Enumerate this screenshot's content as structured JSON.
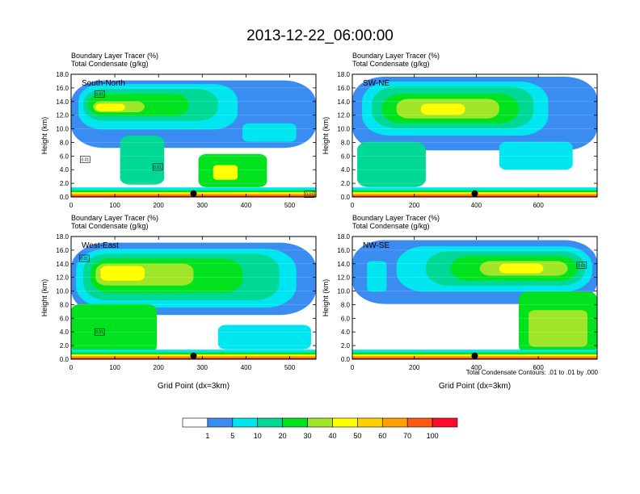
{
  "figure": {
    "title": "2013-12-22_06:00:00",
    "footnote": "Total Condensate Contours: .01 to .01 by .000"
  },
  "colorbar": {
    "colors": [
      "#ffffff",
      "#3a8cf0",
      "#00e6f0",
      "#00d896",
      "#00e21e",
      "#a0e628",
      "#ffff00",
      "#ffd000",
      "#ffa000",
      "#ff5a14",
      "#ff0a28"
    ],
    "labels": [
      "1",
      "5",
      "10",
      "20",
      "30",
      "40",
      "50",
      "60",
      "70",
      "100"
    ]
  },
  "chart_data": [
    {
      "type": "heatmap",
      "label": "South-North",
      "subtitle_lines": [
        "Boundary Layer Tracer   (%)",
        "Total Condensate   (g/kg)"
      ],
      "xlabel": "",
      "ylabel": "Height (km)",
      "xlim": [
        0,
        560
      ],
      "ylim": [
        0,
        18
      ],
      "x_ticks": [
        0,
        100,
        200,
        300,
        400,
        500
      ],
      "y_ticks": [
        0.0,
        2.0,
        4.0,
        6.0,
        8.0,
        10.0,
        12.0,
        14.0,
        16.0,
        18.0
      ],
      "y_tick_labels": [
        "0.0",
        "2.0",
        "4.0",
        "6.0",
        "8.0",
        "10.0",
        "12.0",
        "14.0",
        "16.0",
        "18.0"
      ],
      "marker_x": 280,
      "contour_labels": [
        {
          "text": "0.01",
          "x": 65,
          "y": 15.1
        },
        {
          "text": "0.01",
          "x": 32,
          "y": 5.5
        },
        {
          "text": "0.01",
          "x": 198,
          "y": 4.4
        },
        {
          "text": "0.01",
          "x": 545,
          "y": 0.4
        }
      ]
    },
    {
      "type": "heatmap",
      "label": "SW-NE",
      "subtitle_lines": [
        "Boundary Layer Tracer   (%)",
        "Total Condensate   (g/kg)"
      ],
      "xlabel": "",
      "ylabel": "Height (km)",
      "xlim": [
        0,
        790
      ],
      "ylim": [
        0,
        18
      ],
      "x_ticks": [
        0,
        200,
        400,
        600
      ],
      "y_ticks": [
        0.0,
        2.0,
        4.0,
        6.0,
        8.0,
        10.0,
        12.0,
        14.0,
        16.0,
        18.0
      ],
      "y_tick_labels": [
        "0.0",
        "2.0",
        "4.0",
        "6.0",
        "8.0",
        "10.0",
        "12.0",
        "14.0",
        "16.0",
        "18.0"
      ],
      "marker_x": 395,
      "contour_labels": []
    },
    {
      "type": "heatmap",
      "label": "West-East",
      "subtitle_lines": [
        "Boundary Layer Tracer   (%)",
        "Total Condensate   (g/kg)"
      ],
      "xlabel": "Grid Point (dx=3km)",
      "ylabel": "Height (km)",
      "xlim": [
        0,
        560
      ],
      "ylim": [
        0,
        18
      ],
      "x_ticks": [
        0,
        100,
        200,
        300,
        400,
        500
      ],
      "y_ticks": [
        0.0,
        2.0,
        4.0,
        6.0,
        8.0,
        10.0,
        12.0,
        14.0,
        16.0,
        18.0
      ],
      "y_tick_labels": [
        "0.0",
        "2.0",
        "4.0",
        "6.0",
        "8.0",
        "10.0",
        "12.0",
        "14.0",
        "16.0",
        "18.0"
      ],
      "marker_x": 280,
      "contour_labels": [
        {
          "text": "0.01",
          "x": 30,
          "y": 14.8
        },
        {
          "text": "0.01",
          "x": 65,
          "y": 4.0
        }
      ]
    },
    {
      "type": "heatmap",
      "label": "NW-SE",
      "subtitle_lines": [
        "Boundary Layer Tracer   (%)",
        "Total Condensate   (g/kg)"
      ],
      "xlabel": "Grid Point (dx=3km)",
      "ylabel": "Height (km)",
      "xlim": [
        0,
        790
      ],
      "ylim": [
        0,
        18
      ],
      "x_ticks": [
        0,
        200,
        400,
        600
      ],
      "y_ticks": [
        0.0,
        2.0,
        4.0,
        6.0,
        8.0,
        10.0,
        12.0,
        14.0,
        16.0,
        18.0
      ],
      "y_tick_labels": [
        "0.0",
        "2.0",
        "4.0",
        "6.0",
        "8.0",
        "10.0",
        "12.0",
        "14.0",
        "16.0",
        "18.0"
      ],
      "marker_x": 395,
      "contour_labels": [
        {
          "text": "0.01",
          "x": 740,
          "y": 13.8
        }
      ]
    }
  ]
}
